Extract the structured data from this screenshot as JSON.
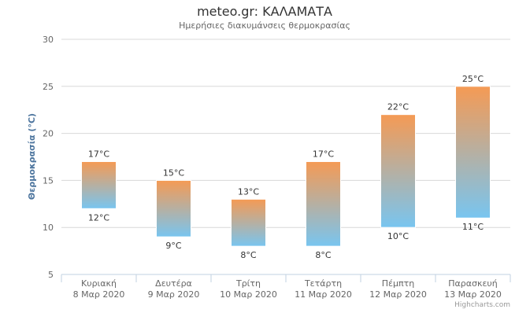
{
  "chart_data": {
    "type": "bar",
    "title": "meteo.gr: ΚΑΛΑΜΑΤΑ",
    "subtitle": "Ημερήσιες διακυμάνσεις θερμοκρασίας",
    "ylabel": "Θερμοκρασία (°C)",
    "xlabel": "",
    "ylim": [
      5,
      30
    ],
    "yticks": [
      5,
      10,
      15,
      20,
      25,
      30
    ],
    "grid": true,
    "legend": "none",
    "unit": "°C",
    "categories": [
      {
        "day": "Κυριακή",
        "date": "8 Μαρ 2020"
      },
      {
        "day": "Δευτέρα",
        "date": "9 Μαρ 2020"
      },
      {
        "day": "Τρίτη",
        "date": "10 Μαρ 2020"
      },
      {
        "day": "Τετάρτη",
        "date": "11 Μαρ 2020"
      },
      {
        "day": "Πέμπτη",
        "date": "12 Μαρ 2020"
      },
      {
        "day": "Παρασκευή",
        "date": "13 Μαρ 2020"
      }
    ],
    "series": [
      {
        "low": [
          12,
          9,
          8,
          8,
          10,
          11
        ],
        "high": [
          17,
          15,
          13,
          17,
          22,
          25
        ]
      }
    ],
    "colors": {
      "top": "#f59a54",
      "bottom": "#78c5f0"
    }
  },
  "credits": "Highcharts.com"
}
